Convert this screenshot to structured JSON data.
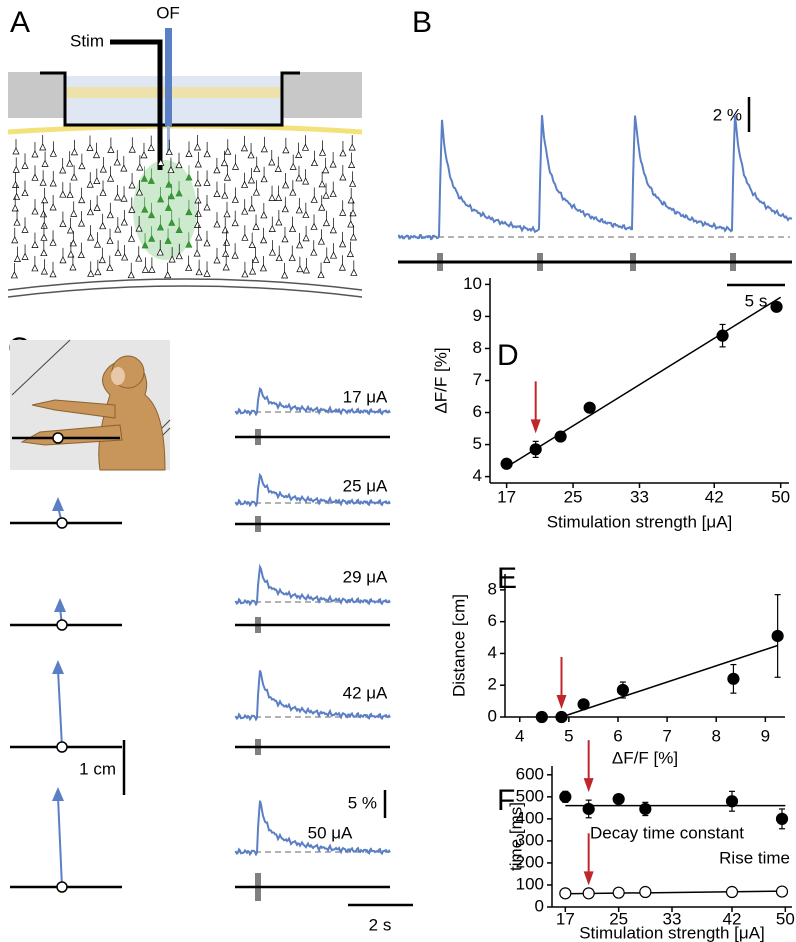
{
  "panels": {
    "A": {
      "label": "A",
      "fiber": "OF",
      "electrode": "Stim"
    },
    "B": {
      "label": "B",
      "scale_y": "2 %",
      "scale_x": "5 s"
    },
    "C": {
      "label": "C",
      "currents": [
        "17 μA",
        "25 μA",
        "29 μA",
        "42 μA",
        "50 μA"
      ],
      "scale_distance": "1 cm",
      "scale_y": "5 %",
      "scale_x": "2 s"
    }
  },
  "chart_data": [
    {
      "type": "scatter",
      "panel": "D",
      "xlabel": "Stimulation strength [μA]",
      "ylabel": "ΔF/F [%]",
      "x": [
        17,
        20.5,
        23.5,
        27,
        43,
        49.5
      ],
      "series": [
        {
          "marker_fill": "#000000",
          "values": [
            4.4,
            4.85,
            5.25,
            6.15,
            8.4,
            9.3
          ],
          "errors": [
            null,
            0.25,
            null,
            null,
            0.35,
            null
          ],
          "fit": {
            "x": [
              17,
              50
            ],
            "values": [
              4.3,
              9.6
            ]
          }
        }
      ],
      "arrow_index": 1,
      "arrow_color": "#c0272d",
      "color": "#000000",
      "xlim": [
        15,
        51
      ],
      "ylim": [
        3.8,
        10.2
      ],
      "xticks": [
        17,
        25,
        33,
        42,
        50
      ],
      "yticks": [
        4,
        5,
        6,
        7,
        8,
        9,
        10
      ]
    },
    {
      "type": "scatter",
      "panel": "E",
      "xlabel": "ΔF/F [%]",
      "ylabel": "Distance [cm]",
      "x": [
        4.45,
        4.85,
        5.3,
        6.1,
        8.35,
        9.25
      ],
      "series": [
        {
          "marker_fill": "#000000",
          "values": [
            0,
            0,
            0.8,
            1.7,
            2.4,
            5.1
          ],
          "errors": [
            null,
            null,
            0.3,
            0.5,
            0.9,
            2.6
          ],
          "fit": {
            "x": [
              4.85,
              9.25
            ],
            "values": [
              0,
              4.5
            ]
          }
        }
      ],
      "arrow_index": 1,
      "arrow_color": "#c0272d",
      "color": "#000000",
      "xlim": [
        3.7,
        9.4
      ],
      "ylim": [
        0,
        9
      ],
      "xticks": [
        4,
        5,
        6,
        7,
        8,
        9
      ],
      "yticks": [
        0,
        2,
        4,
        6,
        8
      ]
    },
    {
      "type": "scatter",
      "panel": "F",
      "xlabel": "Stimulation strength [μA]",
      "ylabel": "time [ms]",
      "x": [
        17,
        20.5,
        25,
        29,
        42,
        49.5
      ],
      "series": [
        {
          "name": "Decay time constant",
          "marker_fill": "#000000",
          "values": [
            500,
            445,
            490,
            445,
            480,
            400
          ],
          "errors": [
            25,
            40,
            15,
            30,
            45,
            45
          ],
          "fit": {
            "x": [
              17,
              50
            ],
            "values": [
              460,
              460
            ]
          }
        },
        {
          "name": "Rise time",
          "marker_fill": "#ffffff",
          "values": [
            62,
            62,
            65,
            68,
            68,
            70
          ],
          "errors": [
            null,
            null,
            null,
            null,
            null,
            null
          ],
          "fit": {
            "x": [
              17,
              50
            ],
            "values": [
              60,
              72
            ]
          }
        }
      ],
      "arrow_index": 1,
      "arrow_color": "#c0272d",
      "color": "#000000",
      "xlim": [
        15,
        51
      ],
      "ylim": [
        0,
        640
      ],
      "xticks": [
        17,
        25,
        33,
        42,
        50
      ],
      "yticks": [
        0,
        100,
        200,
        300,
        400,
        500,
        600
      ]
    }
  ]
}
